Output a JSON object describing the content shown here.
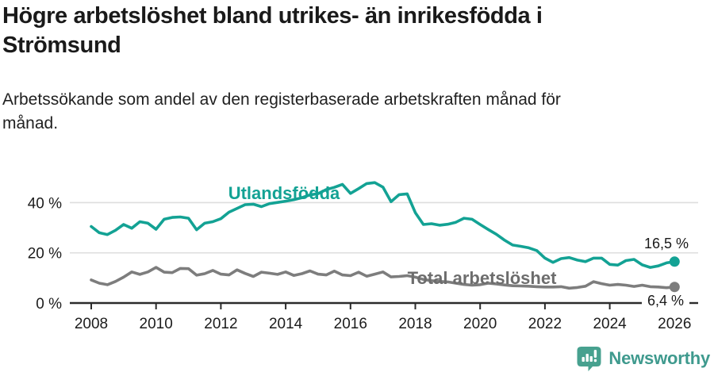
{
  "header": {
    "title": "Högre arbetslöshet bland utrikes- än inrikesfödda i Strömsund",
    "subtitle": "Arbetssökande som andel av den registerbaserade arbetskraften månad för månad."
  },
  "footer": {
    "brand_name": "Newsworthy",
    "brand_icon": "bar-chart-speech-bubble-icon",
    "brand_color": "#3f9a8e"
  },
  "colors": {
    "foreign_born_line": "#13a294",
    "total_line": "#7d7d7d",
    "total_label": "#6d6d6d",
    "grid": "#dedede",
    "axis": "#2b2b2b",
    "text": "#1a1a1a"
  },
  "chart_data": {
    "type": "line",
    "unit": "%",
    "grid": true,
    "legend_position": "inline-labels",
    "xlim": [
      2007.35,
      2026.75
    ],
    "ylim": [
      0,
      52
    ],
    "x_ticks": [
      2008,
      2010,
      2012,
      2014,
      2016,
      2018,
      2020,
      2022,
      2024,
      2026
    ],
    "y_ticks": [
      {
        "value": 0,
        "label": "0 %"
      },
      {
        "value": 20,
        "label": "20 %"
      },
      {
        "value": 40,
        "label": "40 %"
      }
    ],
    "x": [
      2008,
      2008.25,
      2008.5,
      2008.75,
      2009,
      2009.25,
      2009.5,
      2009.75,
      2010,
      2010.25,
      2010.5,
      2010.75,
      2011,
      2011.25,
      2011.5,
      2011.75,
      2012,
      2012.25,
      2012.5,
      2012.75,
      2013,
      2013.25,
      2013.5,
      2013.75,
      2014,
      2014.25,
      2014.5,
      2014.75,
      2015,
      2015.25,
      2015.5,
      2015.75,
      2016,
      2016.25,
      2016.5,
      2016.75,
      2017,
      2017.25,
      2017.5,
      2017.75,
      2018,
      2018.25,
      2018.5,
      2018.75,
      2019,
      2019.25,
      2019.5,
      2019.75,
      2020,
      2020.25,
      2020.5,
      2020.75,
      2021,
      2021.25,
      2021.5,
      2021.75,
      2022,
      2022.25,
      2022.5,
      2022.75,
      2023,
      2023.25,
      2023.5,
      2023.75,
      2024,
      2024.25,
      2024.5,
      2024.75,
      2025,
      2025.25,
      2025.5,
      2025.75,
      2026
    ],
    "series": [
      {
        "name": "Utlandsfödda",
        "color": "#13a294",
        "end_label": "16,5 %",
        "end_value": 16.5,
        "values": [
          30.5,
          28,
          27.3,
          29,
          31.3,
          29.8,
          32.4,
          31.8,
          29.4,
          33.4,
          34.1,
          34.3,
          33.8,
          29.2,
          31.8,
          32.4,
          33.6,
          36.2,
          37.7,
          39.2,
          39.4,
          38.4,
          39.6,
          40.1,
          40.6,
          41.2,
          42,
          43.1,
          43.6,
          45.2,
          46.1,
          47.3,
          43.7,
          45.6,
          47.6,
          48,
          46.2,
          40.4,
          43.2,
          43.5,
          36,
          31.3,
          31.6,
          31,
          31.4,
          32.2,
          33.8,
          33.4,
          31.3,
          29.3,
          27.4,
          25.1,
          23.1,
          22.6,
          22,
          20.9,
          17.9,
          16.2,
          17.7,
          18.1,
          17.1,
          16.5,
          17.9,
          17.9,
          15.4,
          15.1,
          16.9,
          17.4,
          15.2,
          14.2,
          14.8,
          16,
          16.5
        ]
      },
      {
        "name": "Total arbetslöshet",
        "color": "#7d7d7d",
        "end_label": "6,4 %",
        "end_value": 6.4,
        "values": [
          9.2,
          7.9,
          7.3,
          8.6,
          10.3,
          12.4,
          11.4,
          12.4,
          14.2,
          12.3,
          12.1,
          13.8,
          13.7,
          11.1,
          11.7,
          13,
          11.5,
          11.2,
          13.2,
          11.8,
          10.6,
          12.3,
          11.9,
          11.4,
          12.4,
          11,
          11.7,
          12.8,
          11.5,
          11.2,
          12.7,
          11.2,
          10.9,
          12.3,
          10.7,
          11.5,
          12.4,
          10.4,
          10.6,
          10.9,
          10.3,
          9.4,
          8.9,
          8.6,
          8.4,
          7.9,
          7.4,
          7.1,
          7.3,
          7.9,
          7.6,
          7.2,
          6.9,
          6.8,
          6.7,
          6.5,
          6.4,
          6.4,
          6.5,
          5.9,
          6.2,
          6.7,
          8.5,
          7.7,
          7.1,
          7.4,
          7.1,
          6.6,
          7.1,
          6.5,
          6.4,
          6.1,
          6.4
        ]
      }
    ]
  }
}
